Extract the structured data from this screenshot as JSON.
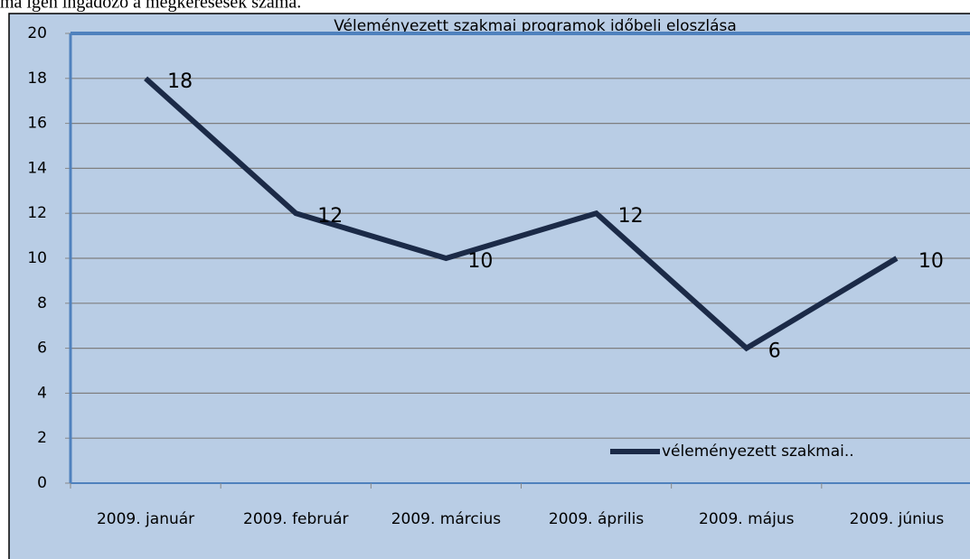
{
  "caption": "ma igen ingadozó a megkeresések száma.",
  "chart_data": {
    "type": "line",
    "title": "Véleményezett szakmai programok időbeli eloszlása",
    "categories": [
      "2009. január",
      "2009. február",
      "2009. március",
      "2009. április",
      "2009. május",
      "2009. június"
    ],
    "series": [
      {
        "name": "véleményezett szakmai..",
        "color": "#1b2a47",
        "values": [
          18,
          12,
          10,
          12,
          6,
          10
        ]
      }
    ],
    "ylim": [
      0,
      20
    ],
    "yticks": [
      0,
      2,
      4,
      6,
      8,
      10,
      12,
      14,
      16,
      18,
      20
    ],
    "grid": true,
    "legend": "bottom-right"
  }
}
